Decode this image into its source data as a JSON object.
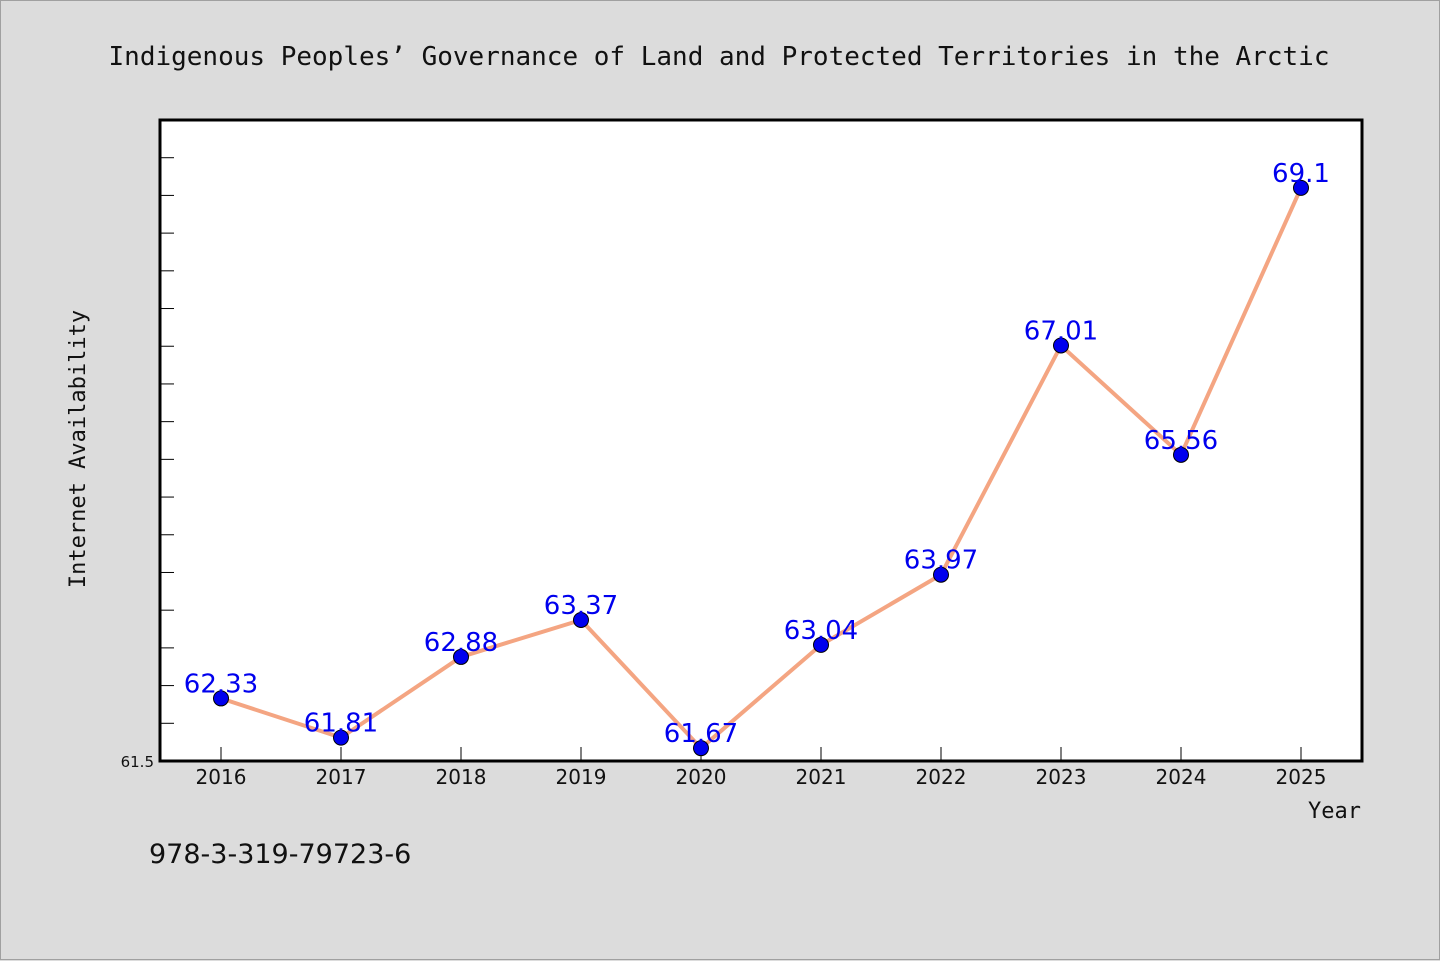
{
  "chart_data": {
    "type": "line",
    "title": "Indigenous Peoples’ Governance of Land and Protected Territories in the Arctic",
    "xlabel": "Year",
    "ylabel": "Internet Availability",
    "categories": [
      "2016",
      "2017",
      "2018",
      "2019",
      "2020",
      "2021",
      "2022",
      "2023",
      "2024",
      "2025"
    ],
    "series": [
      {
        "values": [
          62.33,
          61.81,
          62.88,
          63.37,
          61.67,
          63.04,
          63.97,
          67.01,
          65.56,
          69.1
        ],
        "labels": [
          "62.33",
          "61.81",
          "62.88",
          "63.37",
          "61.67",
          "63.04",
          "63.97",
          "67.01",
          "65.56",
          "69.1"
        ]
      }
    ],
    "ylim": [
      61.5,
      70.0
    ],
    "yticks_labeled": [
      "61.5"
    ],
    "grid": false,
    "line_color": "#f4a582",
    "marker_color": "#0000ee",
    "label_color": "#0000ee"
  },
  "footer": {
    "isbn": "978-3-319-79723-6"
  }
}
